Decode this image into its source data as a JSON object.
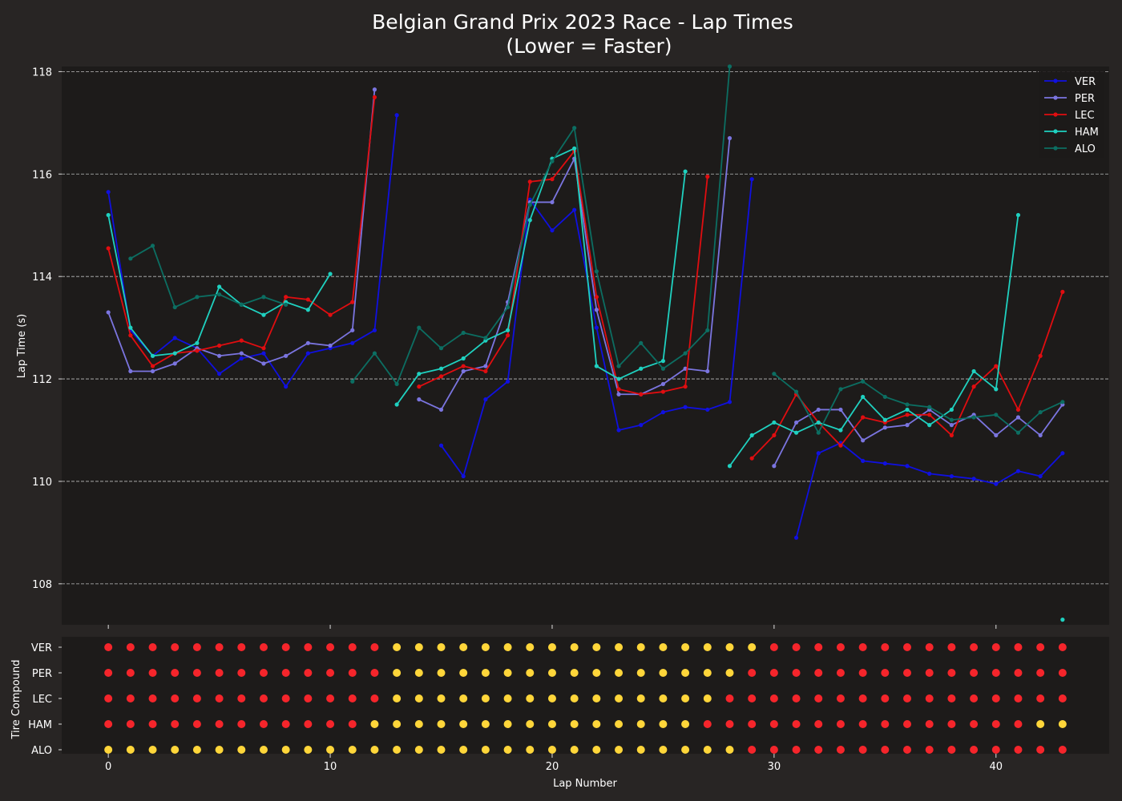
{
  "chart_data": {
    "type": "line",
    "title": "Belgian Grand Prix 2023 Race - Lap Times",
    "subtitle": "(Lower = Faster)",
    "xlabel": "Lap Number",
    "ylabel": "Lap Time (s)",
    "xlim": [
      -2.1,
      45.1
    ],
    "ylim": [
      107.2,
      118.1
    ],
    "x_ticks": [
      0,
      10,
      20,
      30,
      40
    ],
    "y_ticks": [
      108,
      110,
      112,
      114,
      116,
      118
    ],
    "grid": "y-dashed",
    "legend_position": "top-right",
    "series": [
      {
        "name": "VER",
        "color": "#1010e0",
        "values": [
          115.65,
          112.95,
          112.45,
          112.8,
          112.6,
          112.1,
          112.4,
          112.5,
          111.85,
          112.5,
          112.6,
          112.7,
          112.95,
          117.15,
          null,
          110.7,
          110.1,
          111.6,
          111.95,
          115.5,
          114.9,
          115.3,
          113.0,
          111.0,
          111.1,
          111.35,
          111.45,
          111.4,
          111.55,
          115.9,
          null,
          108.9,
          110.55,
          110.75,
          110.4,
          110.35,
          110.3,
          110.15,
          110.1,
          110.05,
          109.95,
          110.2,
          110.1,
          110.55
        ]
      },
      {
        "name": "PER",
        "color": "#7b75e0",
        "values": [
          113.3,
          112.15,
          112.15,
          112.3,
          112.6,
          112.45,
          112.5,
          112.3,
          112.45,
          112.7,
          112.65,
          112.95,
          117.65,
          null,
          111.6,
          111.4,
          112.15,
          112.25,
          113.5,
          115.45,
          115.45,
          116.3,
          113.35,
          111.7,
          111.7,
          111.9,
          112.2,
          112.15,
          116.7,
          null,
          110.3,
          111.15,
          111.4,
          111.4,
          110.8,
          111.05,
          111.1,
          111.4,
          111.1,
          111.3,
          110.9,
          111.25,
          110.9,
          111.5
        ]
      },
      {
        "name": "LEC",
        "color": "#e00d10",
        "values": [
          114.55,
          112.85,
          112.25,
          112.5,
          112.55,
          112.65,
          112.75,
          112.6,
          113.6,
          113.55,
          113.25,
          113.5,
          117.5,
          null,
          111.85,
          112.05,
          112.25,
          112.15,
          112.85,
          115.85,
          115.9,
          116.45,
          113.6,
          111.8,
          111.7,
          111.75,
          111.85,
          115.95,
          null,
          110.45,
          110.9,
          111.7,
          111.15,
          110.7,
          111.25,
          111.15,
          111.3,
          111.3,
          110.9,
          111.85,
          112.25,
          111.4,
          112.45,
          113.7
        ]
      },
      {
        "name": "HAM",
        "color": "#1fd1c0",
        "values": [
          115.2,
          113.0,
          112.45,
          112.5,
          112.7,
          113.8,
          113.45,
          113.25,
          113.5,
          113.35,
          114.05,
          null,
          null,
          111.5,
          112.1,
          112.2,
          112.4,
          112.75,
          112.95,
          115.1,
          116.3,
          116.5,
          112.25,
          112.0,
          112.2,
          112.35,
          116.05,
          null,
          110.3,
          110.9,
          111.15,
          110.95,
          111.15,
          111.0,
          111.65,
          111.2,
          111.4,
          111.1,
          111.4,
          112.15,
          111.8,
          115.2,
          null,
          107.3
        ]
      },
      {
        "name": "ALO",
        "color": "#0c6e62",
        "values": [
          null,
          114.35,
          114.6,
          113.4,
          113.6,
          113.65,
          113.45,
          113.6,
          113.45,
          null,
          null,
          111.95,
          112.5,
          111.9,
          113.0,
          112.6,
          112.9,
          112.8,
          113.4,
          115.4,
          116.25,
          116.9,
          114.1,
          112.25,
          112.7,
          112.2,
          112.5,
          112.95,
          118.1,
          null,
          112.1,
          111.75,
          110.95,
          111.8,
          111.95,
          111.65,
          111.5,
          111.45,
          111.2,
          111.25,
          111.3,
          110.95,
          111.35,
          111.55
        ]
      }
    ],
    "tire_compound": {
      "ylabel": "Tire Compound",
      "rows": [
        "VER",
        "PER",
        "LEC",
        "HAM",
        "ALO"
      ],
      "compound_colors": {
        "M": "#f5252b",
        "H": "#ffd63a"
      },
      "hard_start": [
        13,
        13,
        13,
        12,
        0
      ],
      "hard_end": [
        29,
        28,
        27,
        26,
        28
      ],
      "hard_second_start": [
        null,
        null,
        null,
        42,
        null
      ]
    }
  }
}
